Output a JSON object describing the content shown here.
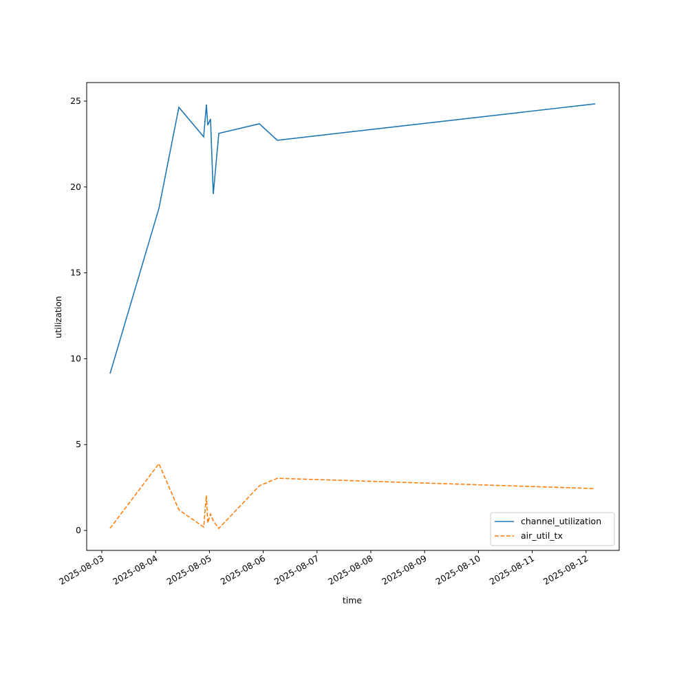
{
  "chart_data": {
    "type": "line",
    "xlabel": "time",
    "ylabel": "utilization",
    "x": [
      "2025-08-03T03:40",
      "2025-08-04T01:28",
      "2025-08-04T10:22",
      "2025-08-04T21:26",
      "2025-08-04T22:39",
      "2025-08-04T23:15",
      "2025-08-05T00:29",
      "2025-08-05T01:43",
      "2025-08-05T04:11",
      "2025-08-05T22:16",
      "2025-08-06T06:16",
      "2025-08-12T04:03"
    ],
    "series": [
      {
        "name": "channel_utilization",
        "color": "#1f77b4",
        "dash": "solid",
        "values": [
          9.13,
          18.75,
          24.64,
          22.92,
          24.8,
          23.6,
          23.96,
          19.59,
          23.12,
          23.68,
          22.72,
          24.84
        ]
      },
      {
        "name": "air_util_tx",
        "color": "#ff7f0e",
        "dash": "dashed",
        "values": [
          0.12,
          3.89,
          1.2,
          0.2,
          2.04,
          0.44,
          0.96,
          0.56,
          0.12,
          2.6,
          3.04,
          2.44
        ]
      }
    ],
    "xlim": [
      "2025-08-02T17:15",
      "2025-08-12T14:47"
    ],
    "xticks": [
      "2025-08-03",
      "2025-08-04",
      "2025-08-05",
      "2025-08-06",
      "2025-08-07",
      "2025-08-08",
      "2025-08-09",
      "2025-08-10",
      "2025-08-11",
      "2025-08-12"
    ],
    "ylim": [
      -1.16,
      26.08
    ],
    "yticks": [
      0,
      5,
      10,
      15,
      20,
      25
    ],
    "legend": "lower right"
  }
}
